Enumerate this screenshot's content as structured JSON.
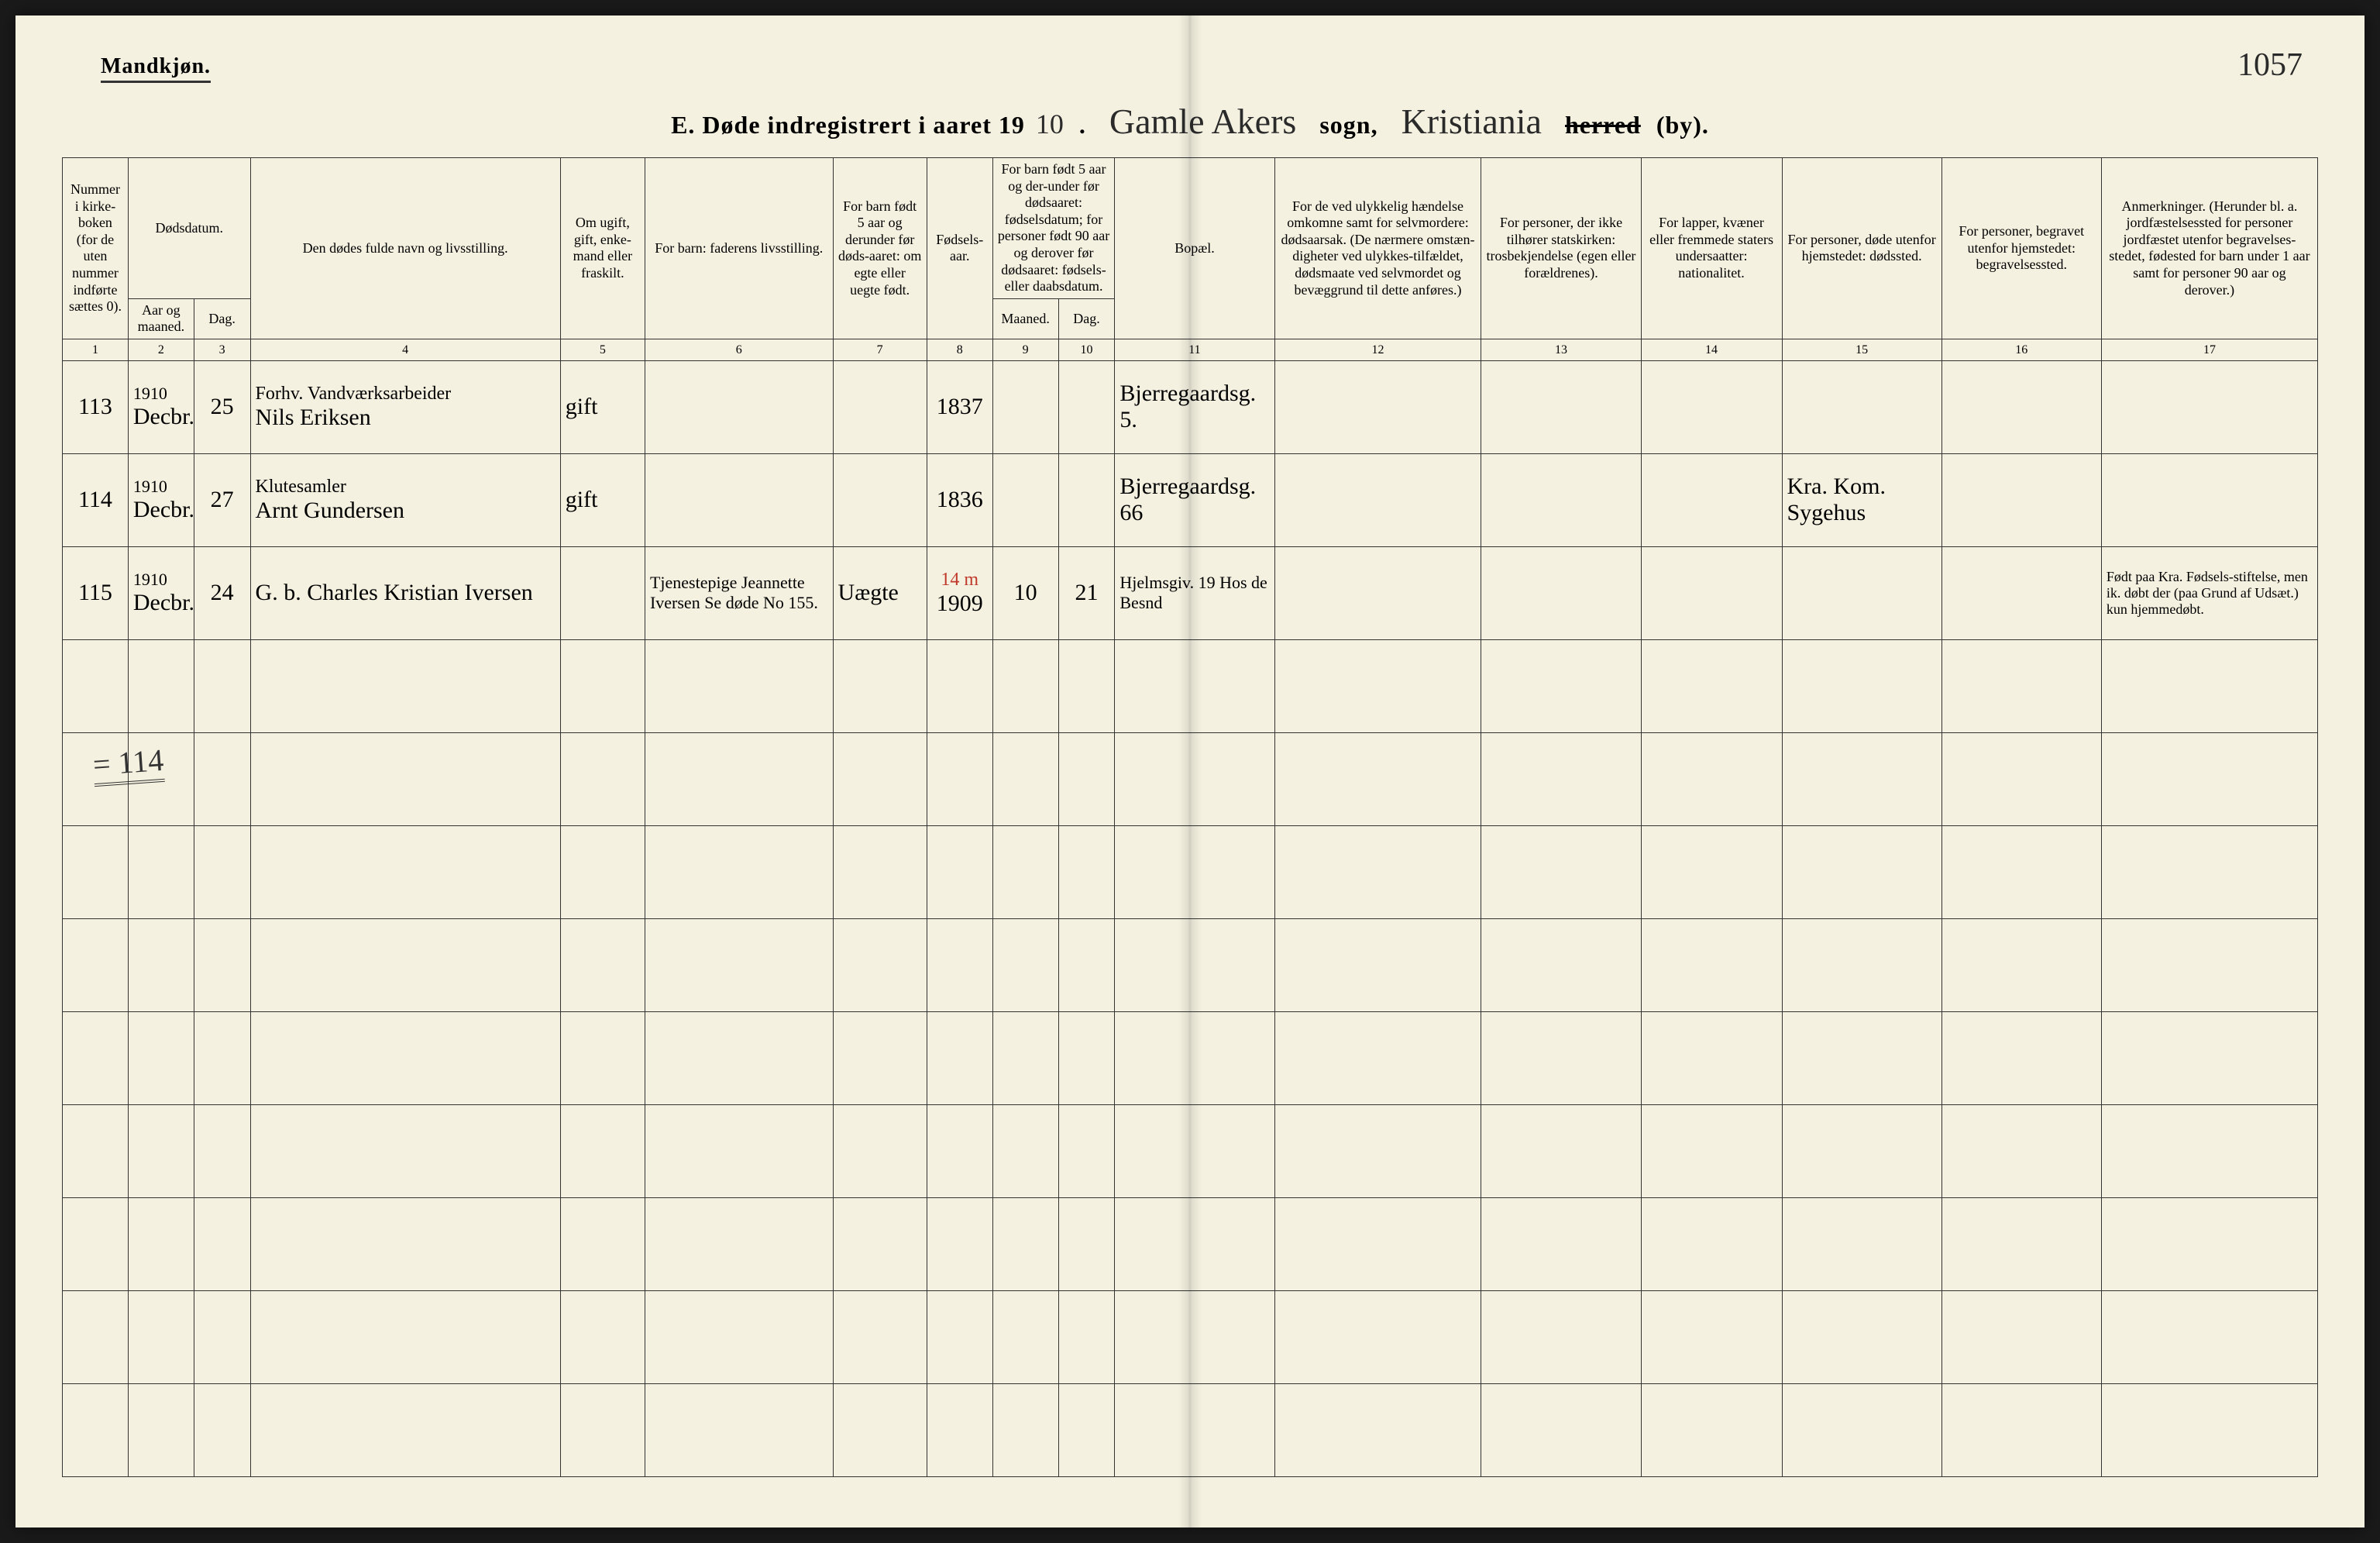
{
  "page": {
    "gender_label": "Mandkjøn.",
    "page_number_hand": "1057",
    "title_prefix": "E.  Døde indregistrert i aaret 19",
    "year_suffix": "10",
    "title_dot": ".",
    "sogn_hand": "Gamle Akers",
    "sogn_label": "sogn,",
    "herred_hand": "Kristiania",
    "herred_label_strike": "herred",
    "herred_label_by": "(by)."
  },
  "headers": {
    "c1": "Nummer i kirke-boken (for de uten nummer indførte sættes 0).",
    "c2_group": "Dødsdatum.",
    "c2a": "Aar og maaned.",
    "c2b": "Dag.",
    "c4": "Den dødes fulde navn og livsstilling.",
    "c5": "Om ugift, gift, enke-mand eller fraskilt.",
    "c6": "For barn: faderens livsstilling.",
    "c7": "For barn født 5 aar og derunder før døds-aaret: om egte eller uegte født.",
    "c8": "Fødsels-aar.",
    "c9_group": "For barn født 5 aar og der-under før dødsaaret: fødselsdatum; for personer født 90 aar og derover før dødsaaret: fødsels- eller daabsdatum.",
    "c9a": "Maaned.",
    "c9b": "Dag.",
    "c11": "Bopæl.",
    "c12": "For de ved ulykkelig hændelse omkomne samt for selvmordere: dødsaarsak. (De nærmere omstæn-digheter ved ulykkes-tilfældet, dødsmaate ved selvmordet og bevæggrund til dette anføres.)",
    "c13": "For personer, der ikke tilhører statskirken: trosbekjendelse (egen eller forældrenes).",
    "c14": "For lapper, kvæner eller fremmede staters undersaatter: nationalitet.",
    "c15": "For personer, døde utenfor hjemstedet: dødssted.",
    "c16": "For personer, begravet utenfor hjemstedet: begravelsessted.",
    "c17": "Anmerkninger. (Herunder bl. a. jordfæstelsessted for personer jordfæstet utenfor begravelses-stedet, fødested for barn under 1 aar samt for personer 90 aar og derover.)"
  },
  "colnums": [
    "1",
    "2",
    "3",
    "4",
    "5",
    "6",
    "7",
    "8",
    "9",
    "10",
    "11",
    "12",
    "13",
    "14",
    "15",
    "16",
    "17"
  ],
  "rows": [
    {
      "no": "113",
      "year": "1910",
      "month": "Decbr.",
      "day": "25",
      "name_line1": "Forhv. Vandværksarbeider",
      "name_line2": "Nils Eriksen",
      "status": "gift",
      "father": "",
      "legit": "",
      "birth_year": "1837",
      "birth_m": "",
      "birth_d": "",
      "residence": "Bjerregaardsg. 5.",
      "cause": "",
      "faith": "",
      "nat": "",
      "death_place": "",
      "burial_place": "",
      "remarks": ""
    },
    {
      "no": "114",
      "year": "1910",
      "month": "Decbr.",
      "day": "27",
      "name_line1": "Klutesamler",
      "name_line2": "Arnt Gundersen",
      "status": "gift",
      "father": "",
      "legit": "",
      "birth_year": "1836",
      "birth_m": "",
      "birth_d": "",
      "residence": "Bjerregaardsg. 66",
      "cause": "",
      "faith": "",
      "nat": "",
      "death_place": "Kra. Kom. Sygehus",
      "burial_place": "",
      "remarks": ""
    },
    {
      "no": "115",
      "year": "1910",
      "month": "Decbr.",
      "day": "24",
      "name_line1": "",
      "name_line2": "G. b. Charles Kristian Iversen",
      "status": "",
      "father": "Tjenestepige Jeannette Iversen Se døde No 155.",
      "legit": "Uægte",
      "birth_year": "1909",
      "birth_m": "10",
      "birth_d": "21",
      "red_note": "14 m",
      "residence": "Hjelmsgiv. 19 Hos de Besnd",
      "cause": "",
      "faith": "",
      "nat": "",
      "death_place": "",
      "burial_place": "",
      "remarks": "Født paa Kra. Fødsels-stiftelse, men ik. døbt der (paa Grund af Udsæt.) kun hjemmedøbt."
    }
  ],
  "summary_total": "= 114",
  "colors": {
    "paper": "#f4f1e0",
    "ink": "#2a2a2a",
    "red": "#c0392b",
    "border": "#333333"
  }
}
